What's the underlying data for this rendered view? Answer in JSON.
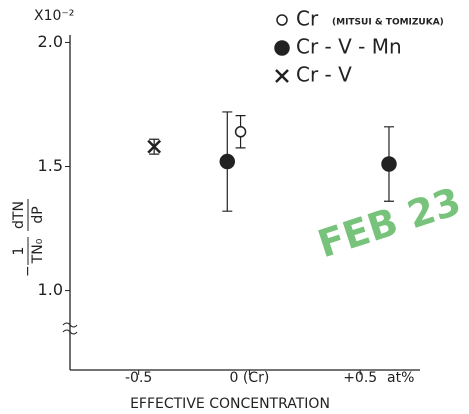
{
  "chart_data": {
    "type": "scatter",
    "multiplier": "X10⁻²",
    "ylabel": {
      "sign": "−",
      "numerator1": "1",
      "denominator1": "TN₀",
      "numerator2": "dTN",
      "denominator2": "dP"
    },
    "xlabel": "EFFECTIVE CONCENTRATION",
    "xunit": "at%",
    "xlim": [
      -0.81,
      0.77
    ],
    "xticks": [
      {
        "value": -0.5,
        "label": "-0.5"
      },
      {
        "value": 0,
        "label": "0 (Cr)"
      },
      {
        "value": 0.5,
        "label": "+0.5"
      }
    ],
    "ylim": [
      0.68,
      2.03
    ],
    "yticks": [
      {
        "value": 2,
        "label": "2.0"
      },
      1.5,
      {
        "value": 1,
        "label": "1.0"
      }
    ],
    "axis_break": true,
    "legend": "top-right",
    "stamp": "FEB 23",
    "series": [
      {
        "name": "Cr",
        "note": "(MITSUI & TOMIZUKA)",
        "marker": "open-circle",
        "color": "#222",
        "x": [
          -0.04
        ],
        "values": [
          1.64
        ],
        "errors": [
          0.065
        ]
      },
      {
        "name": "Cr - V - Mn",
        "marker": "filled-circle",
        "color": "#222",
        "x": [
          -0.1,
          0.63
        ],
        "values": [
          1.52,
          1.51
        ],
        "errors": [
          0.2,
          0.15
        ]
      },
      {
        "name": "Cr - V",
        "marker": "cross",
        "color": "#222",
        "x": [
          -0.43
        ],
        "values": [
          1.58
        ],
        "errors": [
          0.03
        ]
      }
    ]
  }
}
